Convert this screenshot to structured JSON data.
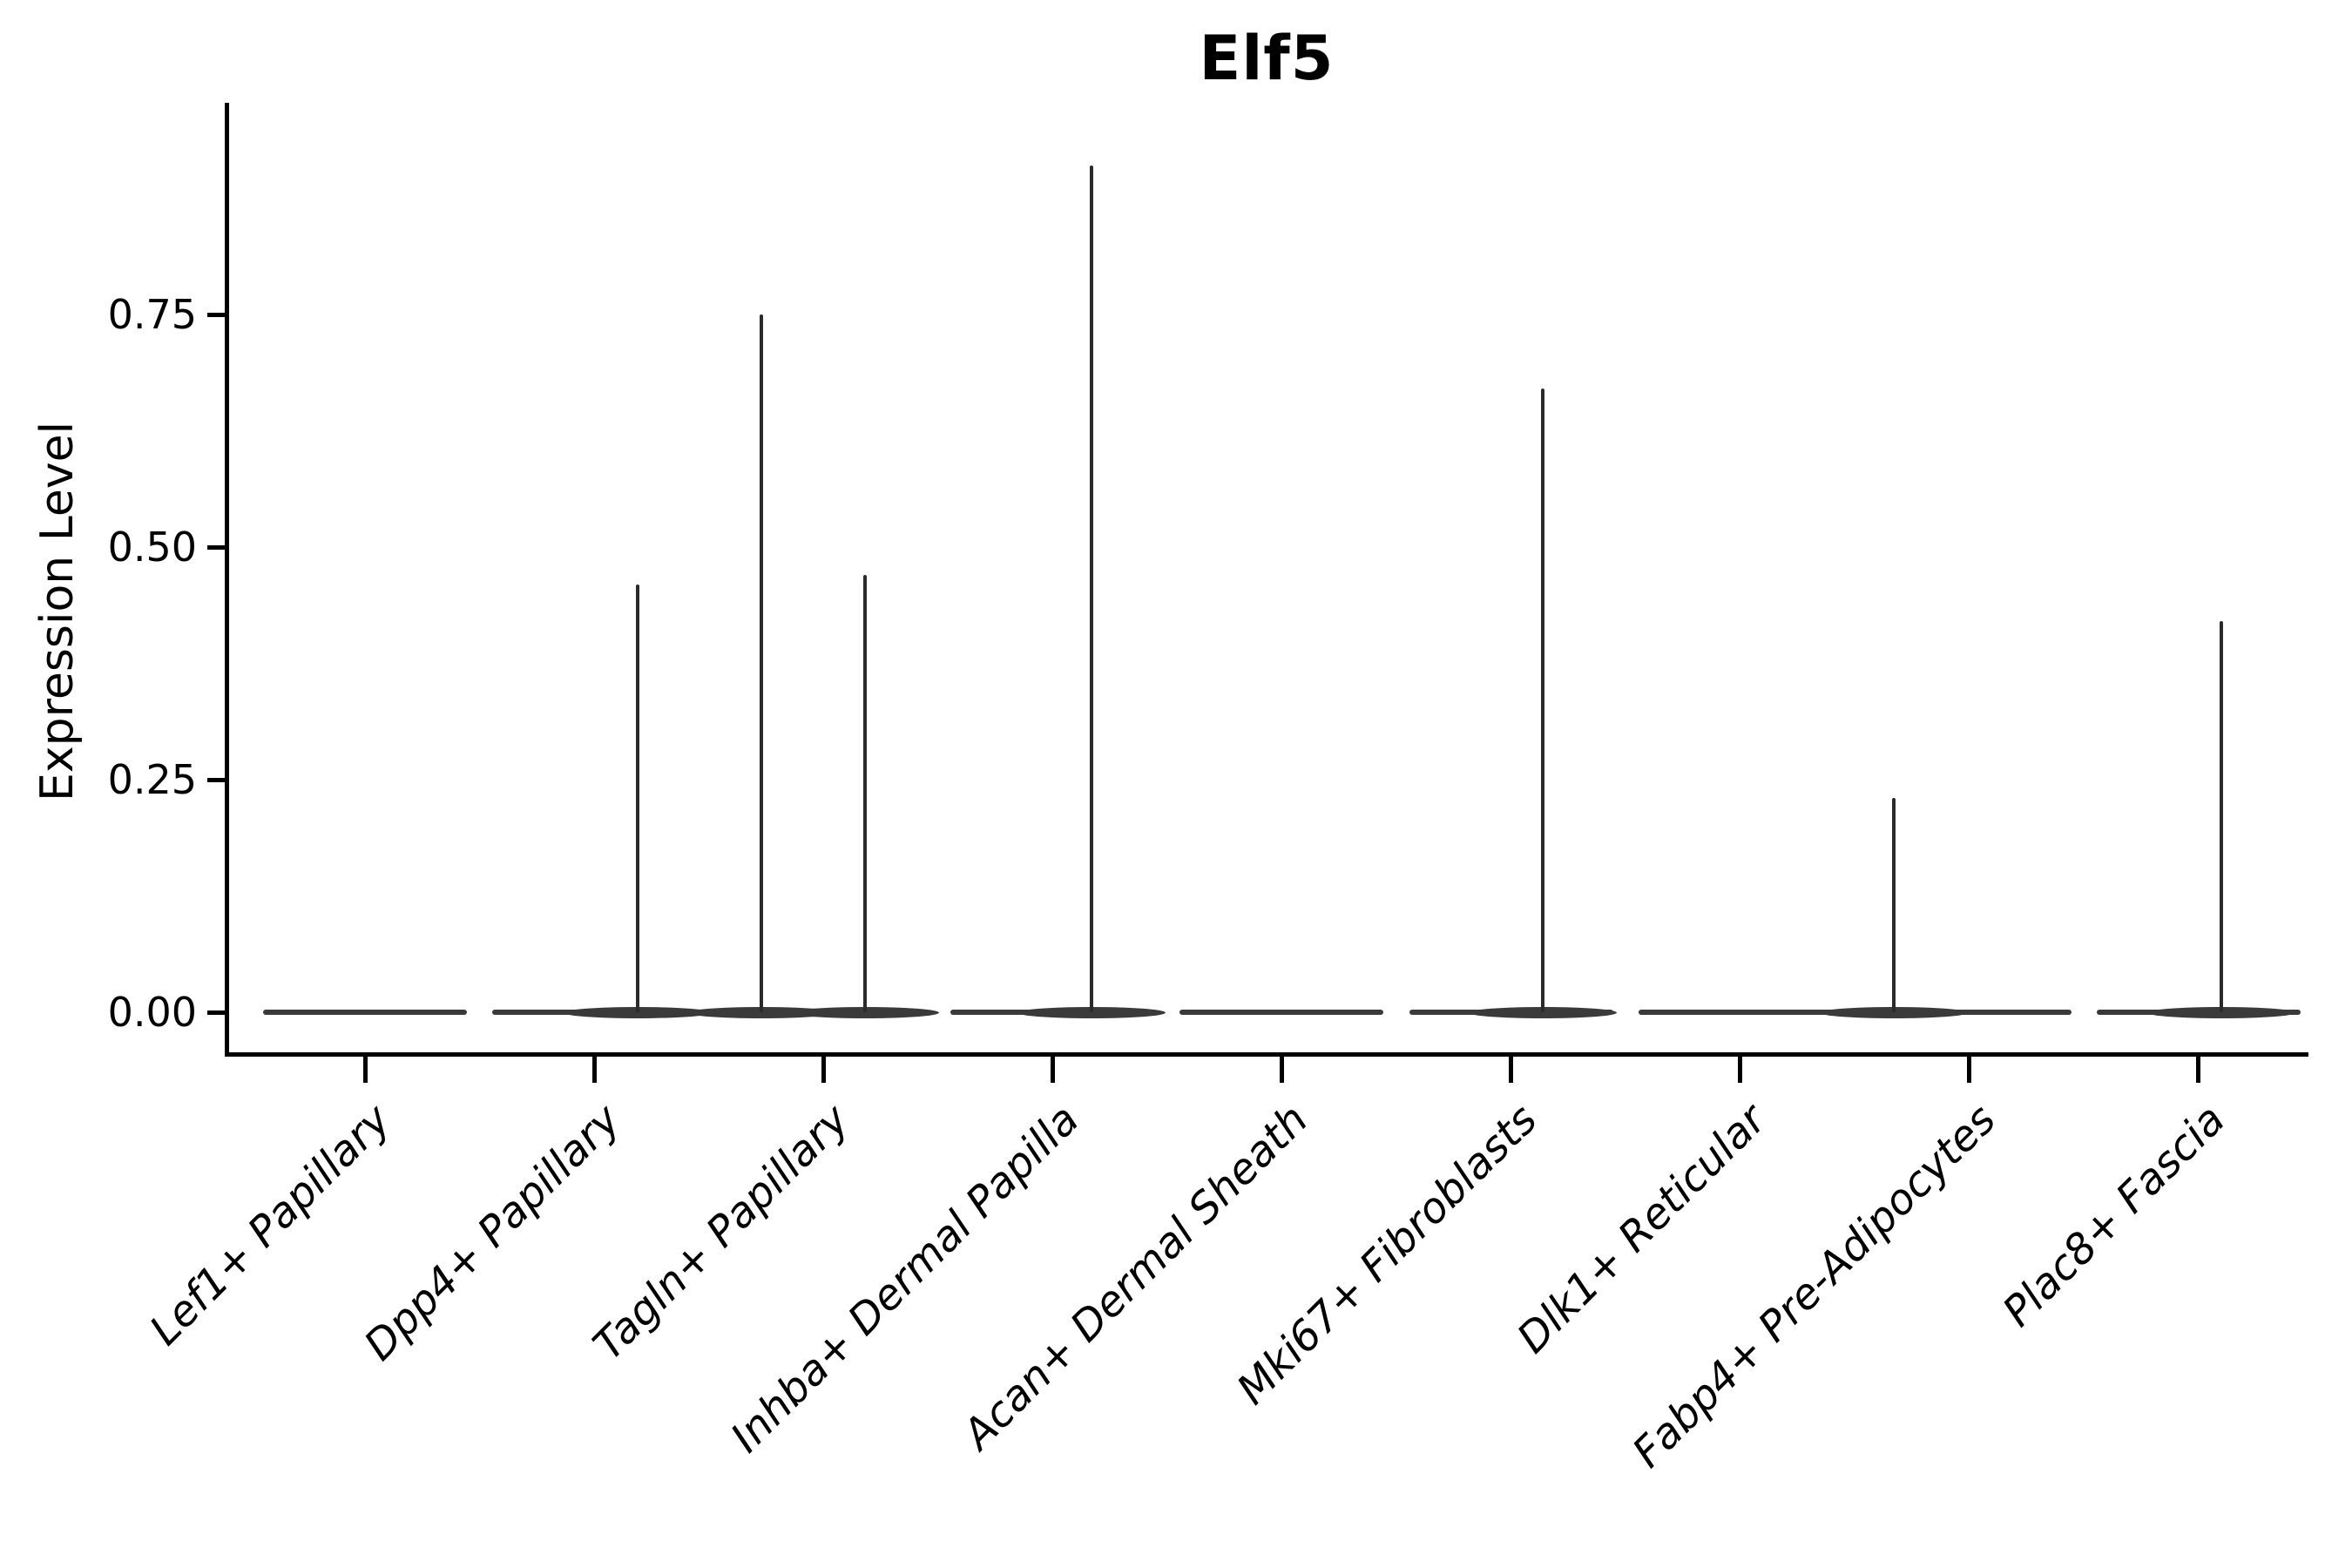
{
  "chart_data": {
    "type": "violin",
    "title": "Elf5",
    "ylabel": "Expression Level",
    "xlabel": "",
    "legend": "none",
    "grid": false,
    "ylim": [
      0,
      0.97
    ],
    "y_tick_values": [
      0,
      0.25,
      0.5,
      0.75
    ],
    "y_tick_labels": [
      "0.00",
      "0.25",
      "0.50",
      "0.75"
    ],
    "categories": [
      "Lef1+ Papillary",
      "Dpp4+ Papillary",
      "Tagln+ Papillary",
      "Inhba+ Dermal Papilla",
      "Acan+ Dermal Sheath",
      "Mki67+ Fibroblasts",
      "Dlk1+ Reticular",
      "Fabp4+ Pre-Adipocytes",
      "Plac8+ Fascia"
    ],
    "violins": [
      {
        "label": "Lef1+ Papillary",
        "baseline_value": 0.0,
        "spikes": []
      },
      {
        "label": "Dpp4+ Papillary",
        "baseline_value": 0.0,
        "spikes": [
          {
            "value": 0.46,
            "offset_frac": 0.19
          }
        ]
      },
      {
        "label": "Tagln+ Papillary",
        "baseline_value": 0.0,
        "spikes": [
          {
            "value": 0.75,
            "offset_frac": -0.27
          },
          {
            "value": 0.47,
            "offset_frac": 0.18
          }
        ]
      },
      {
        "label": "Inhba+ Dermal Papilla",
        "baseline_value": 0.0,
        "spikes": [
          {
            "value": 0.91,
            "offset_frac": 0.17
          }
        ]
      },
      {
        "label": "Acan+ Dermal Sheath",
        "baseline_value": 0.0,
        "spikes": []
      },
      {
        "label": "Mki67+ Fibroblasts",
        "baseline_value": 0.0,
        "spikes": [
          {
            "value": 0.67,
            "offset_frac": 0.14
          }
        ]
      },
      {
        "label": "Dlk1+ Reticular",
        "baseline_value": 0.0,
        "spikes": []
      },
      {
        "label": "Fabp4+ Pre-Adipocytes",
        "baseline_value": 0.0,
        "spikes": [
          {
            "value": 0.23,
            "offset_frac": -0.33
          }
        ]
      },
      {
        "label": "Plac8+ Fascia",
        "baseline_value": 0.0,
        "spikes": [
          {
            "value": 0.42,
            "offset_frac": 0.1
          }
        ]
      }
    ],
    "colors": {
      "axis": "#000000",
      "text": "#000000",
      "violin_stroke": "#2b2b2b",
      "violin_baseline": "#3a3a3a",
      "background": "#ffffff"
    }
  }
}
